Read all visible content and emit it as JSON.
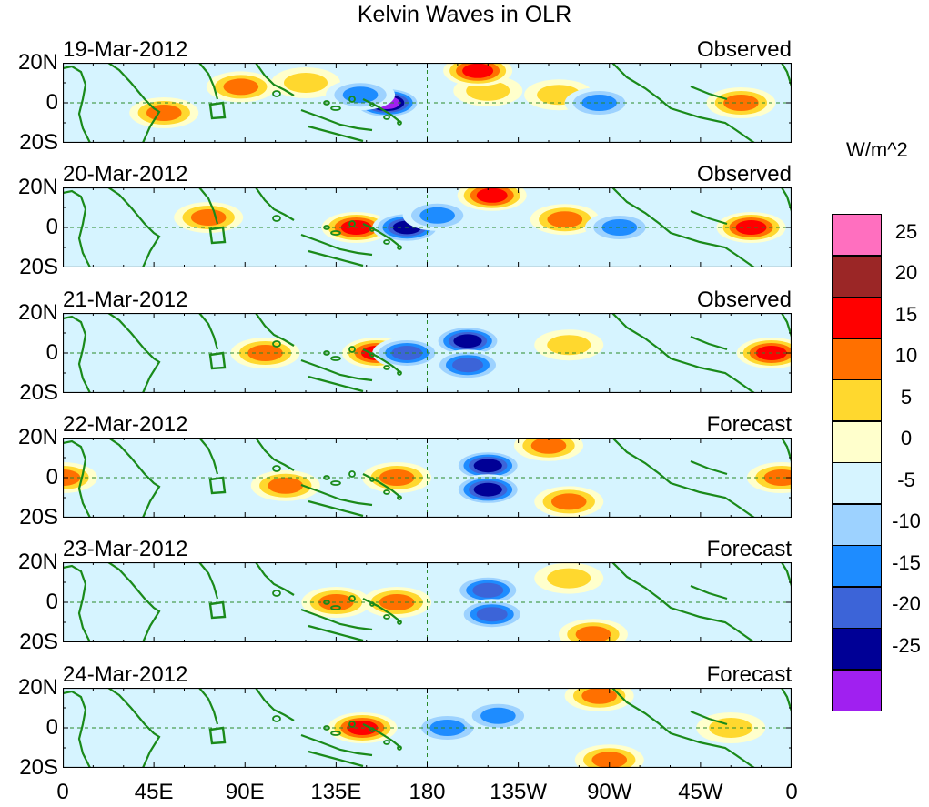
{
  "title": "Kelvin Waves in OLR",
  "lat_labels": [
    "20N",
    "0",
    "20S"
  ],
  "lon_labels": [
    "0",
    "45E",
    "90E",
    "135E",
    "180",
    "135W",
    "90W",
    "45W",
    "0"
  ],
  "lon_values": [
    0,
    45,
    90,
    135,
    180,
    225,
    270,
    315,
    360
  ],
  "panels": [
    {
      "date": "19-Mar-2012",
      "status": "Observed"
    },
    {
      "date": "20-Mar-2012",
      "status": "Observed"
    },
    {
      "date": "21-Mar-2012",
      "status": "Observed"
    },
    {
      "date": "22-Mar-2012",
      "status": "Forecast"
    },
    {
      "date": "23-Mar-2012",
      "status": "Forecast"
    },
    {
      "date": "24-Mar-2012",
      "status": "Forecast"
    }
  ],
  "colorbar": {
    "unit": "W/m^2",
    "colors": [
      "#ff6fbf",
      "#9b2626",
      "#ff0000",
      "#ff7000",
      "#ffd82e",
      "#ffffcc",
      "#d6f4ff",
      "#9dd2ff",
      "#1e8cff",
      "#3c64d8",
      "#000096",
      "#a020f0"
    ],
    "labels": [
      "25",
      "20",
      "15",
      "10",
      "5",
      "0",
      "-5",
      "-10",
      "-15",
      "-20",
      "-25"
    ]
  },
  "colors": {
    "coast": "#1a8a1a",
    "equator": "#2a8a2a",
    "background": "#d6f4ff"
  },
  "chart_data": {
    "type": "heatmap",
    "title": "Kelvin Waves in OLR",
    "variable": "OLR anomaly",
    "unit": "W/m^2",
    "xlim": [
      0,
      360
    ],
    "ylim": [
      -20,
      20
    ],
    "panels": [
      {
        "date": "19-Mar-2012",
        "status": "Observed",
        "anomalies": [
          {
            "lon": 50,
            "lat": -5,
            "value": 12
          },
          {
            "lon": 88,
            "lat": 8,
            "value": 12
          },
          {
            "lon": 120,
            "lat": 10,
            "value": 8
          },
          {
            "lon": 160,
            "lat": 0,
            "value": -27
          },
          {
            "lon": 147,
            "lat": 4,
            "value": -15
          },
          {
            "lon": 210,
            "lat": 6,
            "value": 10
          },
          {
            "lon": 205,
            "lat": 16,
            "value": 16
          },
          {
            "lon": 245,
            "lat": 4,
            "value": 10
          },
          {
            "lon": 265,
            "lat": 0,
            "value": -12
          },
          {
            "lon": 335,
            "lat": 0,
            "value": 14
          }
        ]
      },
      {
        "date": "20-Mar-2012",
        "status": "Observed",
        "anomalies": [
          {
            "lon": 72,
            "lat": 5,
            "value": 14
          },
          {
            "lon": 145,
            "lat": 0,
            "value": 16
          },
          {
            "lon": 170,
            "lat": 0,
            "value": -25
          },
          {
            "lon": 185,
            "lat": 6,
            "value": -14
          },
          {
            "lon": 212,
            "lat": 16,
            "value": 16
          },
          {
            "lon": 248,
            "lat": 4,
            "value": 12
          },
          {
            "lon": 275,
            "lat": 0,
            "value": -12
          },
          {
            "lon": 340,
            "lat": 0,
            "value": 17
          }
        ]
      },
      {
        "date": "21-Mar-2012",
        "status": "Observed",
        "anomalies": [
          {
            "lon": 100,
            "lat": 0,
            "value": 15
          },
          {
            "lon": 155,
            "lat": 0,
            "value": 18
          },
          {
            "lon": 170,
            "lat": 0,
            "value": -20
          },
          {
            "lon": 200,
            "lat": 6,
            "value": -22
          },
          {
            "lon": 200,
            "lat": -6,
            "value": -20
          },
          {
            "lon": 250,
            "lat": 4,
            "value": 10
          },
          {
            "lon": 350,
            "lat": 0,
            "value": 17
          }
        ]
      },
      {
        "date": "22-Mar-2012",
        "status": "Forecast",
        "anomalies": [
          {
            "lon": 0,
            "lat": 0,
            "value": 15
          },
          {
            "lon": 110,
            "lat": -4,
            "value": 12
          },
          {
            "lon": 165,
            "lat": 0,
            "value": 12
          },
          {
            "lon": 210,
            "lat": 6,
            "value": -25
          },
          {
            "lon": 210,
            "lat": -6,
            "value": -25
          },
          {
            "lon": 240,
            "lat": 16,
            "value": 12
          },
          {
            "lon": 250,
            "lat": -12,
            "value": 12
          },
          {
            "lon": 355,
            "lat": 0,
            "value": 15
          }
        ]
      },
      {
        "date": "23-Mar-2012",
        "status": "Forecast",
        "anomalies": [
          {
            "lon": 135,
            "lat": 0,
            "value": 13
          },
          {
            "lon": 165,
            "lat": 0,
            "value": 14
          },
          {
            "lon": 210,
            "lat": 6,
            "value": -18
          },
          {
            "lon": 212,
            "lat": -6,
            "value": -18
          },
          {
            "lon": 250,
            "lat": 12,
            "value": 10
          },
          {
            "lon": 262,
            "lat": -16,
            "value": 12
          }
        ]
      },
      {
        "date": "24-Mar-2012",
        "status": "Forecast",
        "anomalies": [
          {
            "lon": 148,
            "lat": 0,
            "value": 18
          },
          {
            "lon": 190,
            "lat": 0,
            "value": -15
          },
          {
            "lon": 215,
            "lat": 6,
            "value": -15
          },
          {
            "lon": 265,
            "lat": 16,
            "value": 15
          },
          {
            "lon": 270,
            "lat": -16,
            "value": 15
          },
          {
            "lon": 330,
            "lat": 0,
            "value": 8
          }
        ]
      }
    ]
  }
}
